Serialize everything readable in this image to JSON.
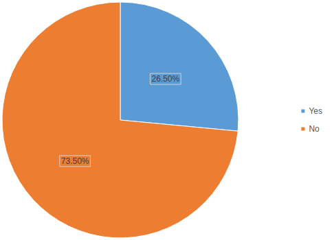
{
  "chart_data": {
    "type": "pie",
    "categories": [
      "Yes",
      "No"
    ],
    "values": [
      26.5,
      73.5
    ],
    "value_labels": [
      "26.50%",
      "73.50%"
    ],
    "colors": [
      "#5b9bd5",
      "#ed7d31"
    ],
    "legend": "right",
    "data_labels": true
  }
}
